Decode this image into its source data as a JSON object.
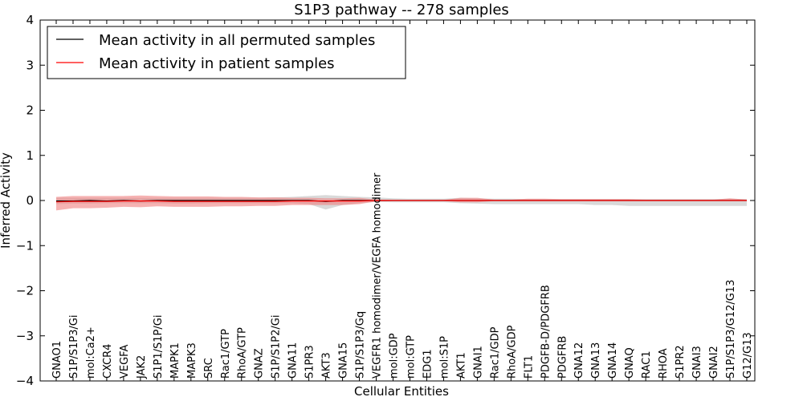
{
  "chart_data": {
    "type": "line",
    "title": "S1P3 pathway -- 278 samples",
    "xlabel": "Cellular Entities",
    "ylabel": "Inferred Activity",
    "ylim": [
      -4,
      4
    ],
    "yticks": [
      4,
      3,
      2,
      1,
      0,
      -1,
      -2,
      -3,
      -4
    ],
    "ytick_labels": [
      "4",
      "3",
      "2",
      "1",
      "0",
      "−1",
      "−2",
      "−3",
      "−4"
    ],
    "grid": false,
    "legend_position": "top-left",
    "categories": [
      "GNAO1",
      "S1P/S1P3/Gi",
      "mol:Ca2+",
      "CXCR4",
      "VEGFA",
      "JAK2",
      "S1P1/S1P/Gi",
      "MAPK1",
      "MAPK3",
      "SRC",
      "Rac1/GTP",
      "RhoA/GTP",
      "GNAZ",
      "S1P/S1P2/Gi",
      "GNA11",
      "S1PR3",
      "AKT3",
      "GNA15",
      "S1P/S1P3/Gq",
      "VEGFR1 homodimer/VEGFA homodimer",
      "mol:GDP",
      "mol:GTP",
      "EDG1",
      "mol:S1P",
      "AKT1",
      "GNAI1",
      "Rac1/GDP",
      "RhoA/GDP",
      "FLT1",
      "PDGFB-D/PDGFRB",
      "PDGFRB",
      "GNA12",
      "GNA13",
      "GNA14",
      "GNAQ",
      "RAC1",
      "RHOA",
      "S1PR2",
      "GNAI3",
      "GNAI2",
      "S1P/S1P3/G12/G13",
      "G12/G13"
    ],
    "series": [
      {
        "name": "Mean activity in all permuted samples",
        "color": "#000000",
        "values": [
          -0.01,
          -0.01,
          0,
          -0.01,
          0,
          -0.01,
          0,
          0,
          0,
          0,
          0,
          0,
          0,
          0,
          0,
          0,
          -0.02,
          0,
          0,
          0,
          0,
          0,
          0,
          0,
          0,
          0,
          0,
          0,
          0,
          0,
          0,
          0,
          0,
          0,
          0,
          0,
          0,
          0,
          0,
          0,
          0,
          0
        ],
        "band_low": [
          -0.08,
          -0.07,
          -0.07,
          -0.06,
          -0.06,
          -0.06,
          -0.06,
          -0.07,
          -0.07,
          -0.06,
          -0.06,
          -0.06,
          -0.06,
          -0.06,
          -0.06,
          -0.08,
          -0.2,
          -0.1,
          -0.06,
          -0.03,
          -0.04,
          -0.04,
          -0.04,
          -0.04,
          -0.06,
          -0.07,
          -0.08,
          -0.08,
          -0.08,
          -0.08,
          -0.08,
          -0.08,
          -0.1,
          -0.1,
          -0.12,
          -0.12,
          -0.12,
          -0.12,
          -0.12,
          -0.12,
          -0.12,
          -0.12
        ],
        "band_high": [
          0.06,
          0.06,
          0.06,
          0.06,
          0.06,
          0.06,
          0.06,
          0.06,
          0.06,
          0.06,
          0.06,
          0.06,
          0.06,
          0.07,
          0.08,
          0.1,
          0.12,
          0.1,
          0.08,
          0.07,
          0.05,
          0.04,
          0.04,
          0.04,
          0.06,
          0.05,
          0.04,
          0.04,
          0.03,
          0.03,
          0.03,
          0.03,
          0.03,
          0.03,
          0.03,
          0.03,
          0.03,
          0.03,
          0.03,
          0.03,
          0.04,
          0.03
        ]
      },
      {
        "name": "Mean activity in patient samples",
        "color": "#ff0000",
        "fill": "#f08080",
        "values": [
          -0.03,
          -0.02,
          -0.02,
          -0.02,
          -0.01,
          -0.01,
          -0.01,
          -0.02,
          -0.02,
          -0.02,
          -0.02,
          -0.02,
          -0.02,
          -0.02,
          -0.01,
          -0.01,
          -0.01,
          -0.01,
          -0.01,
          0,
          0,
          0,
          0,
          0,
          0,
          0,
          0,
          0,
          0,
          0,
          0,
          0,
          0,
          0,
          0,
          0,
          0,
          0,
          0,
          0,
          0,
          0
        ],
        "band_low": [
          -0.22,
          -0.17,
          -0.17,
          -0.16,
          -0.14,
          -0.15,
          -0.13,
          -0.14,
          -0.14,
          -0.14,
          -0.13,
          -0.13,
          -0.12,
          -0.12,
          -0.1,
          -0.1,
          -0.1,
          -0.1,
          -0.08,
          -0.02,
          -0.01,
          -0.01,
          -0.01,
          -0.01,
          -0.04,
          -0.04,
          -0.01,
          -0.01,
          -0.01,
          -0.01,
          -0.01,
          -0.01,
          -0.01,
          -0.01,
          -0.01,
          -0.01,
          -0.01,
          -0.01,
          -0.01,
          -0.01,
          -0.01,
          -0.01
        ],
        "band_high": [
          0.08,
          0.1,
          0.1,
          0.1,
          0.1,
          0.11,
          0.1,
          0.09,
          0.09,
          0.09,
          0.08,
          0.08,
          0.07,
          0.07,
          0.06,
          0.06,
          0.05,
          0.05,
          0.06,
          0.02,
          0.01,
          0.01,
          0.01,
          0.01,
          0.06,
          0.06,
          0.02,
          0.02,
          0.04,
          0.04,
          0.03,
          0.03,
          0.03,
          0.03,
          0.03,
          0.02,
          0.02,
          0.02,
          0.02,
          0.02,
          0.05,
          0.02
        ]
      }
    ]
  }
}
